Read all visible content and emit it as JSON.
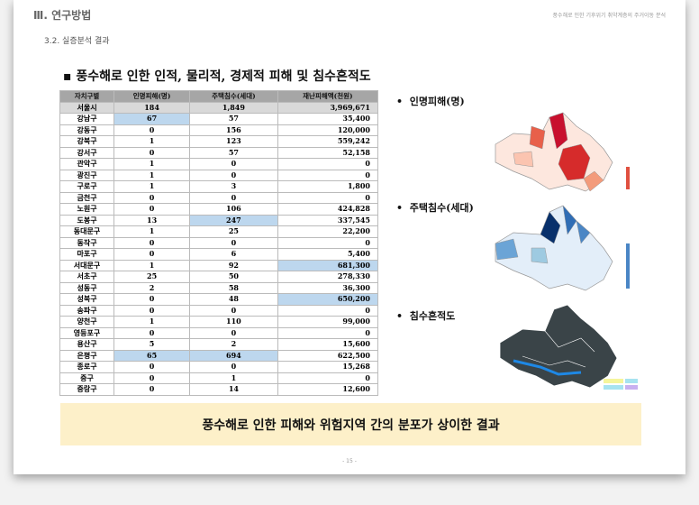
{
  "header": {
    "section": "Ⅲ. 연구방법",
    "right": "풍수해로 인한 기후위기 취약계층의 주거이동 분석",
    "subsection": "3.2. 실증분석 결과"
  },
  "title": "▪ 풍수해로 인한 인적, 물리적, 경제적 피해 및 침수흔적도",
  "table": {
    "columns": [
      "자치구별",
      "인명피해(명)",
      "주택침수(세대)",
      "재난피해액(천원)"
    ],
    "rows": [
      [
        "서울시",
        "184",
        "1,849",
        "3,969,671"
      ],
      [
        "강남구",
        "67",
        "57",
        "35,400"
      ],
      [
        "강동구",
        "0",
        "156",
        "120,000"
      ],
      [
        "강북구",
        "1",
        "123",
        "559,242"
      ],
      [
        "강서구",
        "0",
        "57",
        "52,158"
      ],
      [
        "관악구",
        "1",
        "0",
        "0"
      ],
      [
        "광진구",
        "1",
        "0",
        "0"
      ],
      [
        "구로구",
        "1",
        "3",
        "1,800"
      ],
      [
        "금천구",
        "0",
        "0",
        "0"
      ],
      [
        "노원구",
        "0",
        "106",
        "424,828"
      ],
      [
        "도봉구",
        "13",
        "247",
        "337,545"
      ],
      [
        "동대문구",
        "1",
        "25",
        "22,200"
      ],
      [
        "동작구",
        "0",
        "0",
        "0"
      ],
      [
        "마포구",
        "0",
        "6",
        "5,400"
      ],
      [
        "서대문구",
        "1",
        "92",
        "681,300"
      ],
      [
        "서초구",
        "25",
        "50",
        "278,330"
      ],
      [
        "성동구",
        "2",
        "58",
        "36,300"
      ],
      [
        "성북구",
        "0",
        "48",
        "650,200"
      ],
      [
        "송파구",
        "0",
        "0",
        "0"
      ],
      [
        "양천구",
        "1",
        "110",
        "99,000"
      ],
      [
        "영등포구",
        "0",
        "0",
        "0"
      ],
      [
        "용산구",
        "5",
        "2",
        "15,600"
      ],
      [
        "은평구",
        "65",
        "694",
        "622,500"
      ],
      [
        "종로구",
        "0",
        "0",
        "15,268"
      ],
      [
        "중구",
        "0",
        "1",
        "0"
      ],
      [
        "중랑구",
        "0",
        "14",
        "12,600"
      ]
    ],
    "highlighted_cells": [
      [
        1,
        1
      ],
      [
        10,
        2
      ],
      [
        14,
        3
      ],
      [
        17,
        3
      ],
      [
        22,
        1
      ],
      [
        22,
        2
      ]
    ]
  },
  "maps": [
    {
      "label": "인명피해(명)"
    },
    {
      "label": "주택침수(세대)"
    },
    {
      "label": "침수흔적도"
    }
  ],
  "conclusion": "풍수해로 인한 피해와 위험지역 간의 분포가 상이한 결과",
  "page_number": "- 15 -"
}
